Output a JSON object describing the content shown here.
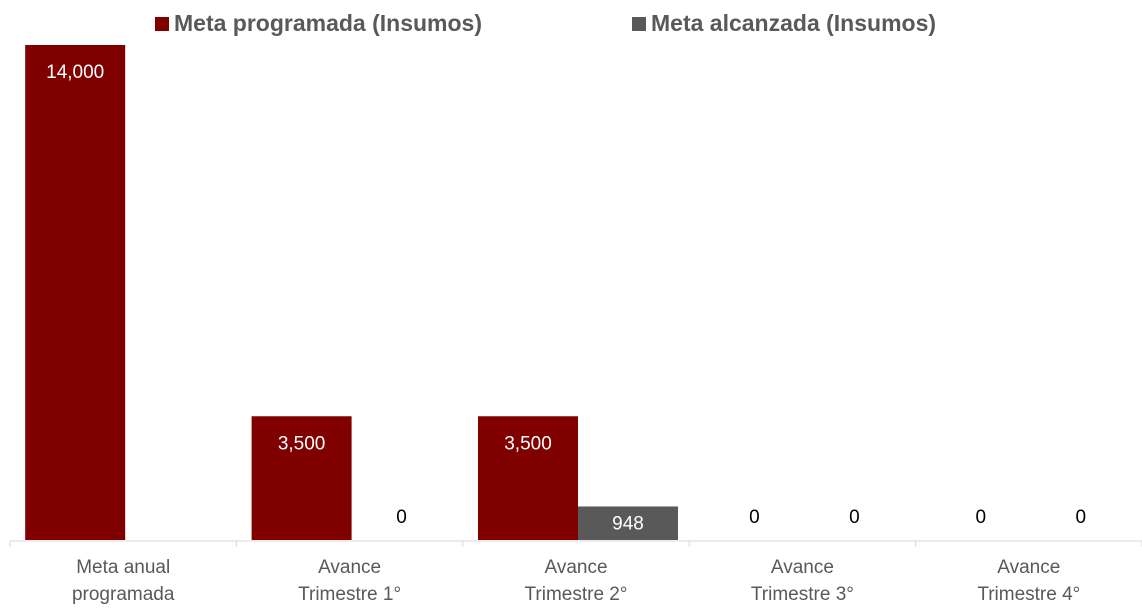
{
  "chart_data": {
    "type": "bar",
    "categories": [
      [
        "Meta anual",
        "programada"
      ],
      [
        "Avance",
        "Trimestre 1°"
      ],
      [
        "Avance",
        "Trimestre 2°"
      ],
      [
        "Avance",
        "Trimestre 3°"
      ],
      [
        "Avance",
        "Trimestre 4°"
      ]
    ],
    "series": [
      {
        "name": "Meta programada (Insumos)",
        "color": "#800000",
        "values": [
          14000,
          3500,
          3500,
          0,
          0
        ],
        "value_labels": [
          "14,000",
          "3,500",
          "3,500",
          "0",
          "0"
        ]
      },
      {
        "name": "Meta alcanzada (Insumos)",
        "color": "#595959",
        "values": [
          null,
          0,
          948,
          0,
          0
        ],
        "value_labels": [
          null,
          "0",
          "948",
          "0",
          "0"
        ]
      }
    ],
    "ylim": [
      0,
      14000
    ],
    "legend": "top"
  }
}
